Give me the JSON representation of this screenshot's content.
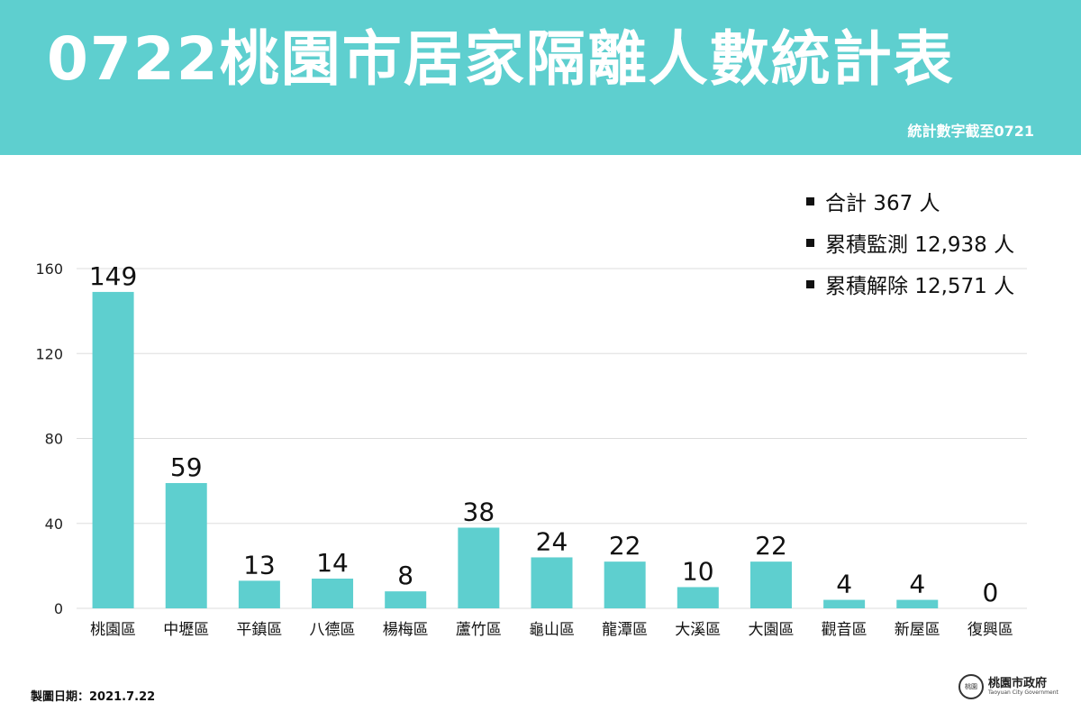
{
  "header": {
    "title": "0722桃園市居家隔離人數統計表",
    "subtitle": "統計數字截至0721"
  },
  "legend": {
    "items": [
      {
        "label": "合計 367 人"
      },
      {
        "label": "累積監測 12,938 人"
      },
      {
        "label": "累積解除 12,571 人"
      }
    ]
  },
  "colors": {
    "header_bg": "#5ecfcf",
    "bar": "#5ecfcf",
    "grid": "#dddddd"
  },
  "chart_data": {
    "type": "bar",
    "categories": [
      "桃園區",
      "中壢區",
      "平鎮區",
      "八德區",
      "楊梅區",
      "蘆竹區",
      "龜山區",
      "龍潭區",
      "大溪區",
      "大園區",
      "觀音區",
      "新屋區",
      "復興區"
    ],
    "values": [
      149,
      59,
      13,
      14,
      8,
      38,
      24,
      22,
      10,
      22,
      4,
      4,
      0
    ],
    "data_labels": [
      "149",
      "59",
      "13",
      "14",
      "8",
      "38",
      "24",
      "22",
      "10",
      "22",
      "4",
      "4",
      "0"
    ],
    "yticks": [
      0,
      40,
      80,
      120,
      160
    ],
    "ytick_labels": [
      "0",
      "40",
      "80",
      "120",
      "160"
    ],
    "ylim": [
      0,
      160
    ],
    "grid": true
  },
  "footer": {
    "date_label": "製圖日期：2021.7.22",
    "org_name": "桃園市政府",
    "org_name_en": "Taoyuan City Government",
    "seal_text": "桃園"
  }
}
